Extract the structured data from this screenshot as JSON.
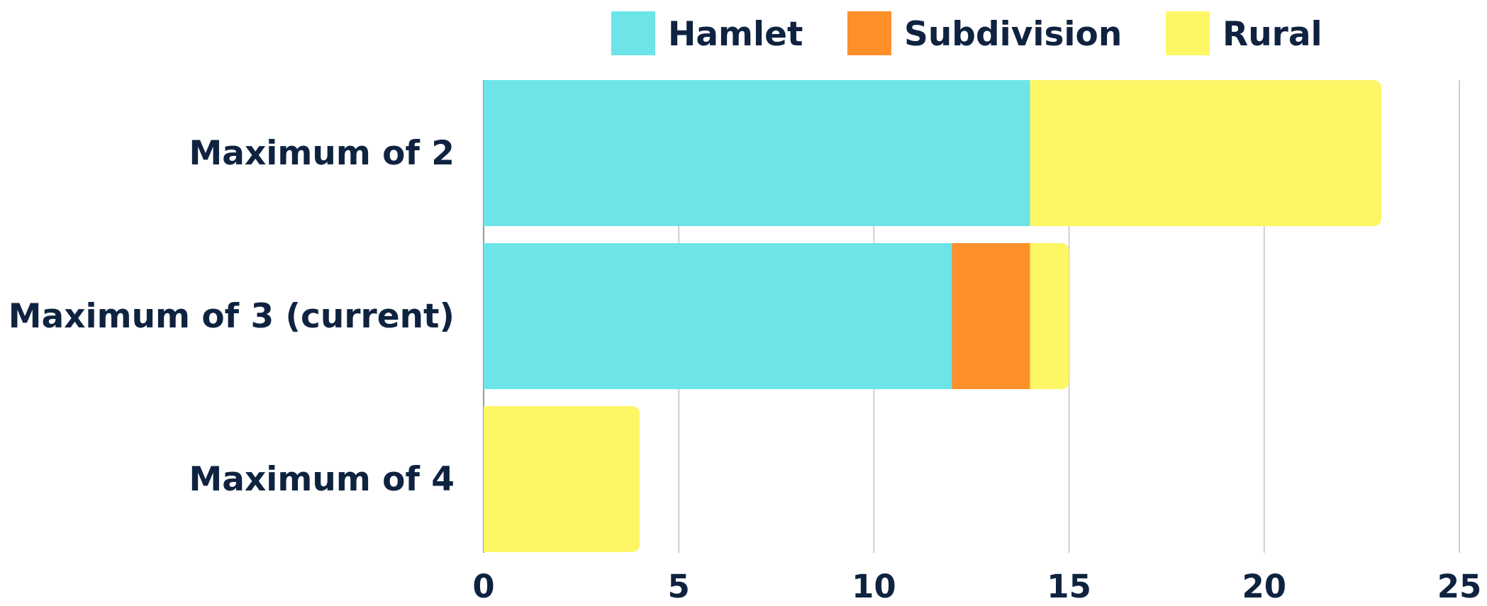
{
  "chart_data": {
    "type": "bar",
    "orientation": "horizontal",
    "stacked": true,
    "categories": [
      "Maximum of 2",
      "Maximum of 3 (current)",
      "Maximum of 4"
    ],
    "series": [
      {
        "name": "Hamlet",
        "color": "#6de4e8",
        "values": [
          14,
          12,
          0
        ]
      },
      {
        "name": "Subdivision",
        "color": "#ff9029",
        "values": [
          0,
          2,
          0
        ]
      },
      {
        "name": "Rural",
        "color": "#fdf665",
        "values": [
          9,
          1,
          4
        ]
      }
    ],
    "xlim": [
      0,
      25
    ],
    "xticks": [
      "0",
      "5",
      "10",
      "15",
      "20",
      "25"
    ],
    "grid": "vertical",
    "legend": "top",
    "title": "",
    "xlabel": "",
    "ylabel": ""
  }
}
